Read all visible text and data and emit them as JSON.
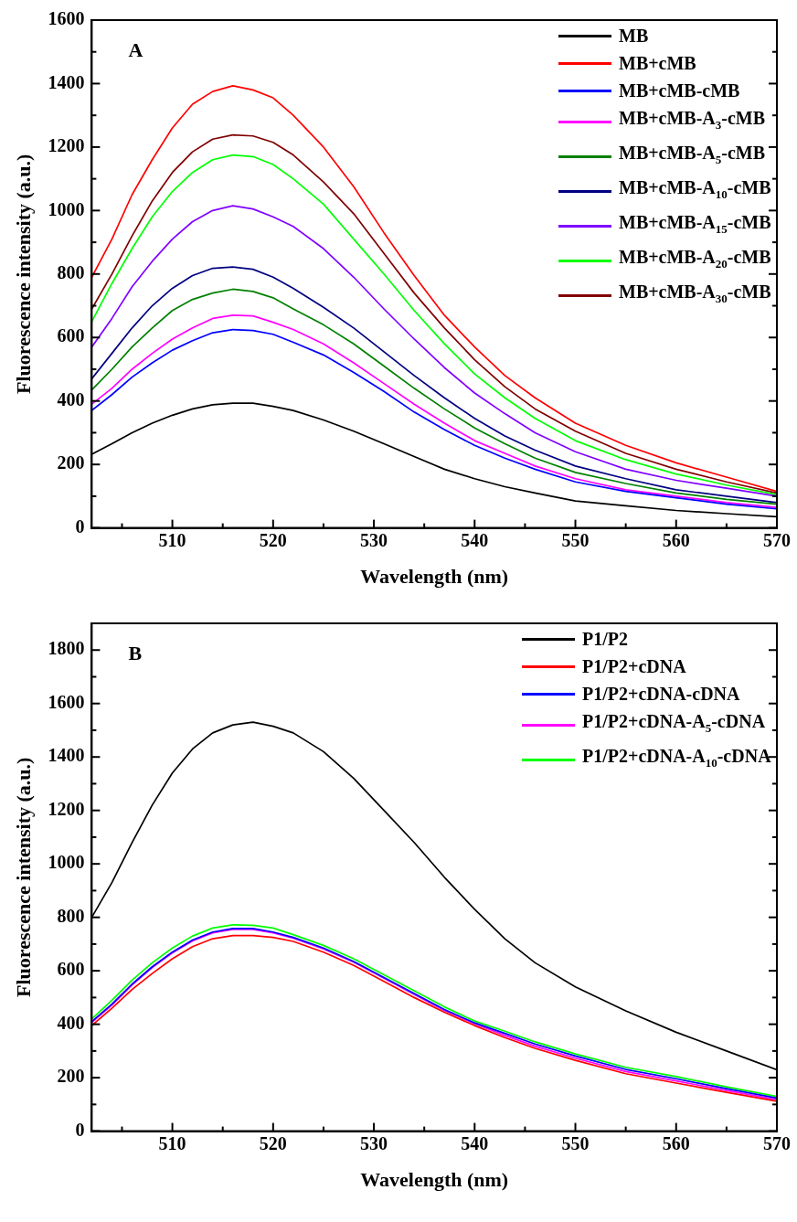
{
  "chart_data": [
    {
      "type": "line",
      "annotations": [
        "A"
      ],
      "xlabel": "Wavelength (nm)",
      "ylabel": "Fluorescence intensity (a.u.)",
      "legend": "top right",
      "grid": false,
      "marker": "none",
      "line_style": "solid",
      "x": [
        502,
        504,
        506,
        508,
        510,
        512,
        514,
        516,
        518,
        520,
        522,
        525,
        528,
        531,
        534,
        537,
        540,
        543,
        546,
        550,
        555,
        560,
        565,
        570
      ],
      "xlim": [
        502,
        570
      ],
      "xticks": [
        {
          "value": 505,
          "label": null
        },
        510,
        {
          "value": 515,
          "label": null
        },
        520,
        {
          "value": 525,
          "label": null
        },
        530,
        {
          "value": 535,
          "label": null
        },
        540,
        {
          "value": 545,
          "label": null
        },
        550,
        {
          "value": 555,
          "label": null
        },
        560,
        {
          "value": 565,
          "label": null
        },
        570
      ],
      "ylim": [
        0,
        1600
      ],
      "yticks": [
        0,
        {
          "value": 100,
          "label": null
        },
        200,
        {
          "value": 300,
          "label": null
        },
        400,
        {
          "value": 500,
          "label": null
        },
        600,
        {
          "value": 700,
          "label": null
        },
        800,
        {
          "value": 900,
          "label": null
        },
        1000,
        {
          "value": 1100,
          "label": null
        },
        1200,
        {
          "value": 1300,
          "label": null
        },
        1400,
        {
          "value": 1500,
          "label": null
        },
        1600
      ],
      "series": [
        {
          "name": "MB",
          "color": "#000000",
          "values": [
            232,
            265,
            300,
            330,
            355,
            375,
            388,
            393,
            393,
            383,
            370,
            340,
            305,
            265,
            225,
            185,
            155,
            130,
            110,
            85,
            70,
            55,
            45,
            35
          ]
        },
        {
          "name": "MB+cMB",
          "color": "#ff0000",
          "values": [
            790,
            910,
            1050,
            1160,
            1260,
            1335,
            1375,
            1393,
            1380,
            1355,
            1300,
            1200,
            1075,
            930,
            795,
            670,
            570,
            480,
            410,
            330,
            260,
            205,
            160,
            115
          ]
        },
        {
          "name": "MB+cMB-cMB",
          "color": "#0000ff",
          "values": [
            370,
            420,
            475,
            520,
            560,
            590,
            615,
            625,
            622,
            610,
            585,
            545,
            490,
            430,
            365,
            310,
            260,
            220,
            185,
            145,
            115,
            95,
            75,
            60
          ]
        },
        {
          "name": "MB+cMB-A$_{3}$-cMB",
          "color": "#ff00ff",
          "values": [
            390,
            440,
            500,
            550,
            595,
            630,
            660,
            670,
            668,
            648,
            625,
            580,
            520,
            455,
            390,
            330,
            275,
            235,
            195,
            155,
            120,
            100,
            80,
            65
          ]
        },
        {
          "name": "MB+cMB-A$_{5}$-cMB",
          "color": "#008000",
          "values": [
            435,
            500,
            570,
            630,
            685,
            720,
            740,
            752,
            745,
            725,
            690,
            640,
            580,
            510,
            440,
            375,
            315,
            265,
            220,
            175,
            140,
            110,
            90,
            75
          ]
        },
        {
          "name": "MB+cMB-A$_{10}$-cMB",
          "color": "#000080",
          "values": [
            470,
            550,
            630,
            700,
            755,
            795,
            818,
            822,
            815,
            790,
            755,
            695,
            630,
            555,
            480,
            410,
            345,
            290,
            245,
            195,
            155,
            120,
            100,
            80
          ]
        },
        {
          "name": "MB+cMB-A$_{15}$-cMB",
          "color": "#8000ff",
          "values": [
            570,
            660,
            760,
            840,
            910,
            965,
            1000,
            1015,
            1005,
            980,
            950,
            880,
            790,
            690,
            595,
            505,
            425,
            360,
            300,
            240,
            185,
            150,
            125,
            100
          ]
        },
        {
          "name": "MB+cMB-A$_{20}$-cMB",
          "color": "#00ff00",
          "values": [
            650,
            770,
            880,
            980,
            1060,
            1120,
            1160,
            1175,
            1170,
            1145,
            1100,
            1020,
            910,
            800,
            685,
            580,
            485,
            410,
            345,
            275,
            215,
            170,
            135,
            105
          ]
        },
        {
          "name": "MB+cMB-A$_{30}$-cMB",
          "color": "#800000",
          "values": [
            690,
            800,
            920,
            1030,
            1120,
            1185,
            1225,
            1238,
            1235,
            1215,
            1175,
            1090,
            990,
            865,
            740,
            630,
            530,
            445,
            375,
            305,
            235,
            185,
            145,
            110
          ]
        }
      ]
    },
    {
      "type": "line",
      "annotations": [
        "B"
      ],
      "xlabel": "Wavelength (nm)",
      "ylabel": "Fluorescence intensity (a.u.)",
      "legend": "top right",
      "grid": false,
      "marker": "none",
      "line_style": "solid",
      "x": [
        502,
        504,
        506,
        508,
        510,
        512,
        514,
        516,
        518,
        520,
        522,
        525,
        528,
        531,
        534,
        537,
        540,
        543,
        546,
        550,
        555,
        560,
        565,
        570
      ],
      "xlim": [
        502,
        570
      ],
      "xticks": [
        {
          "value": 505,
          "label": null
        },
        510,
        {
          "value": 515,
          "label": null
        },
        520,
        {
          "value": 525,
          "label": null
        },
        530,
        {
          "value": 535,
          "label": null
        },
        540,
        {
          "value": 545,
          "label": null
        },
        550,
        {
          "value": 555,
          "label": null
        },
        560,
        {
          "value": 565,
          "label": null
        },
        570
      ],
      "ylim": [
        0,
        1900
      ],
      "yticks": [
        0,
        {
          "value": 100,
          "label": null
        },
        200,
        {
          "value": 300,
          "label": null
        },
        400,
        {
          "value": 500,
          "label": null
        },
        600,
        {
          "value": 700,
          "label": null
        },
        800,
        {
          "value": 900,
          "label": null
        },
        1000,
        {
          "value": 1100,
          "label": null
        },
        1200,
        {
          "value": 1300,
          "label": null
        },
        1400,
        {
          "value": 1500,
          "label": null
        },
        1600,
        {
          "value": 1700,
          "label": null
        },
        1800
      ],
      "series": [
        {
          "name": "P1/P2",
          "color": "#000000",
          "values": [
            800,
            930,
            1080,
            1220,
            1340,
            1430,
            1490,
            1520,
            1530,
            1515,
            1490,
            1420,
            1320,
            1200,
            1080,
            950,
            830,
            720,
            630,
            540,
            450,
            370,
            300,
            230
          ]
        },
        {
          "name": "P1/P2+cDNA",
          "color": "#ff0000",
          "values": [
            395,
            460,
            530,
            590,
            645,
            690,
            720,
            732,
            732,
            725,
            710,
            670,
            620,
            560,
            500,
            445,
            395,
            350,
            310,
            265,
            215,
            180,
            145,
            112
          ]
        },
        {
          "name": "P1/P2+cDNA-cDNA",
          "color": "#0000ff",
          "values": [
            410,
            475,
            550,
            615,
            670,
            715,
            745,
            758,
            758,
            745,
            725,
            685,
            635,
            575,
            515,
            455,
            405,
            366,
            326,
            281,
            231,
            196,
            159,
            124
          ]
        },
        {
          "name": "P1/P2+cDNA-A$_{5}$-cDNA",
          "color": "#ff00ff",
          "values": [
            407,
            472,
            547,
            612,
            667,
            712,
            742,
            755,
            755,
            742,
            722,
            682,
            632,
            572,
            512,
            452,
            402,
            358,
            318,
            273,
            223,
            188,
            152,
            118
          ]
        },
        {
          "name": "P1/P2+cDNA-A$_{10}$-cDNA",
          "color": "#00ff00",
          "values": [
            420,
            490,
            565,
            630,
            685,
            730,
            760,
            772,
            770,
            760,
            735,
            695,
            645,
            585,
            525,
            465,
            412,
            374,
            334,
            289,
            239,
            204,
            166,
            130
          ]
        }
      ]
    }
  ]
}
